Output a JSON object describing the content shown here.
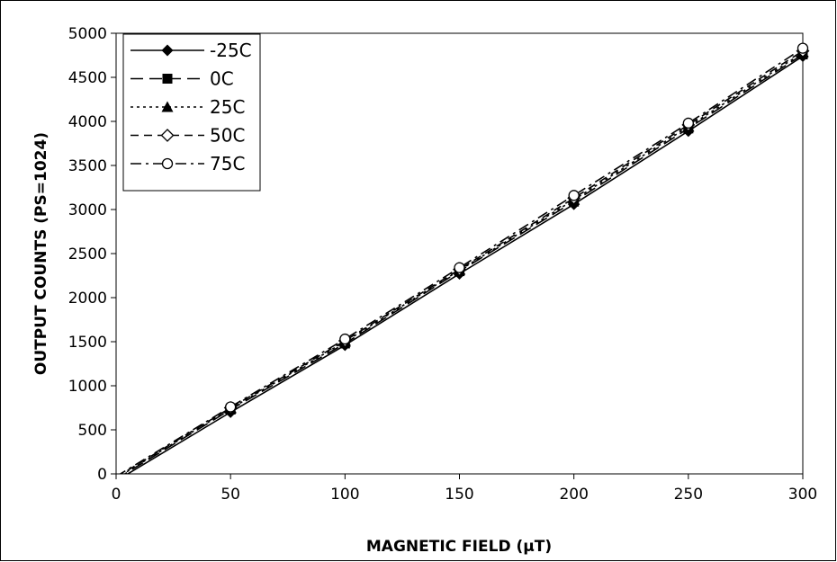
{
  "chart_data": {
    "type": "line",
    "title": "",
    "xlabel": "MAGNETIC FIELD (µT)",
    "ylabel": "OUTPUT COUNTS (PS=1024)",
    "xlim": [
      0,
      300
    ],
    "ylim": [
      0,
      5000
    ],
    "x_ticks": [
      "0",
      "50",
      "100",
      "150",
      "200",
      "250",
      "300"
    ],
    "y_ticks": [
      "0",
      "500",
      "1000",
      "1500",
      "2000",
      "2500",
      "3000",
      "3500",
      "4000",
      "4500",
      "5000"
    ],
    "grid": false,
    "legend_position": "top-left",
    "x": [
      0,
      50,
      100,
      150,
      200,
      250,
      300
    ],
    "series": [
      {
        "name": "-25C",
        "marker": "diamond-filled",
        "line_style": "solid",
        "color": "#000000",
        "values": [
          -80,
          700,
          1460,
          2270,
          3060,
          3890,
          4740
        ]
      },
      {
        "name": "0C",
        "marker": "square-filled",
        "line_style": "long-dash",
        "color": "#000000",
        "values": [
          -60,
          730,
          1480,
          2300,
          3090,
          3920,
          4760
        ]
      },
      {
        "name": "25C",
        "marker": "triangle-filled",
        "line_style": "dotted",
        "color": "#000000",
        "values": [
          -50,
          740,
          1500,
          2310,
          3110,
          3940,
          4780
        ]
      },
      {
        "name": "50C",
        "marker": "diamond-open",
        "line_style": "dash",
        "color": "#000000",
        "values": [
          -40,
          750,
          1510,
          2320,
          3130,
          3960,
          4800
        ]
      },
      {
        "name": "75C",
        "marker": "circle-open",
        "line_style": "dash-dot",
        "color": "#000000",
        "values": [
          -30,
          760,
          1530,
          2340,
          3160,
          3980,
          4830
        ]
      }
    ]
  }
}
